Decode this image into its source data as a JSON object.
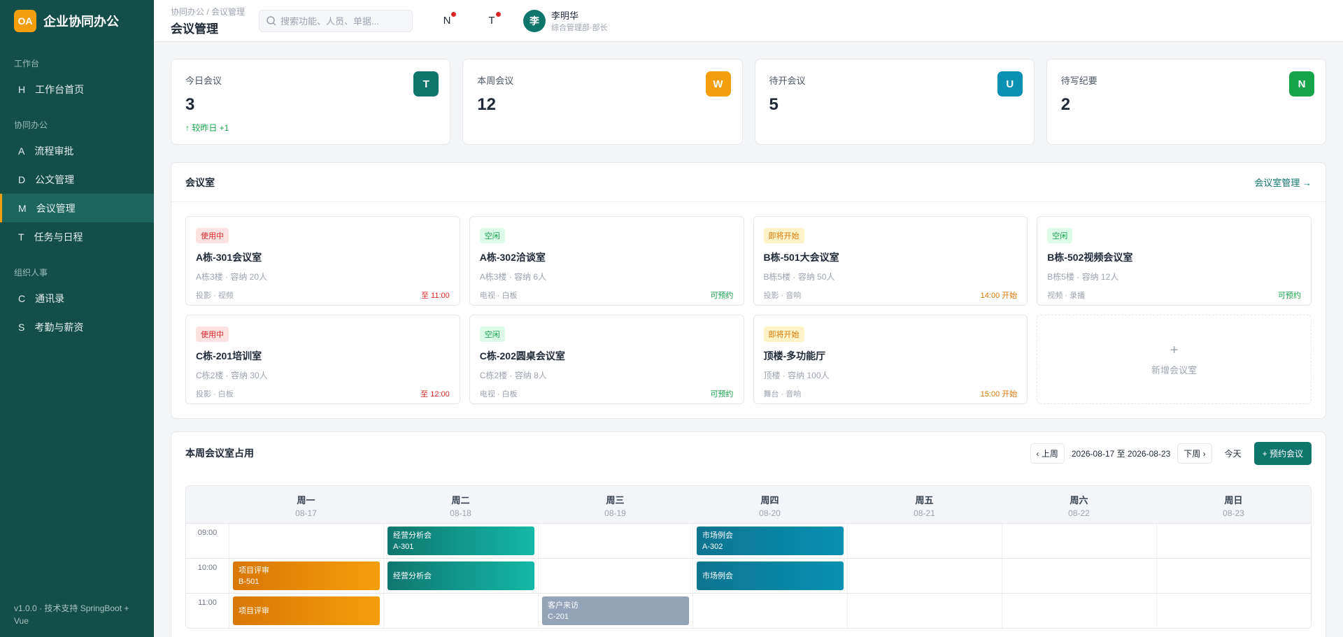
{
  "brand": {
    "logo": "OA",
    "name": "企业协同办公"
  },
  "nav": [
    {
      "title": "工作台",
      "items": [
        {
          "icon": "H",
          "label": "工作台首页"
        }
      ]
    },
    {
      "title": "协同办公",
      "items": [
        {
          "icon": "A",
          "label": "流程审批"
        },
        {
          "icon": "D",
          "label": "公文管理"
        },
        {
          "icon": "M",
          "label": "会议管理",
          "active": true
        },
        {
          "icon": "T",
          "label": "任务与日程"
        }
      ]
    },
    {
      "title": "组织人事",
      "items": [
        {
          "icon": "C",
          "label": "通讯录"
        },
        {
          "icon": "S",
          "label": "考勤与薪资"
        }
      ]
    }
  ],
  "footer": "v1.0.0 · 技术支持 SpringBoot + Vue",
  "header": {
    "breadcrumb": "协同办公 / 会议管理",
    "title": "会议管理",
    "search": "搜索功能、人员、单据...",
    "icons": [
      "N",
      "T"
    ],
    "user": {
      "avatar": "李",
      "name": "李明华",
      "role": "综合管理部·部长"
    }
  },
  "stats": [
    {
      "label": "今日会议",
      "value": 3,
      "icon": "T",
      "color": "#0f766e",
      "note": "↑ 较昨日 +1"
    },
    {
      "label": "本周会议",
      "value": 12,
      "icon": "W",
      "color": "#f59e0b"
    },
    {
      "label": "待开会议",
      "value": 5,
      "icon": "U",
      "color": "#0891b2"
    },
    {
      "label": "待写纪要",
      "value": 2,
      "icon": "N",
      "color": "#16a34a"
    }
  ],
  "rooms": {
    "title": "会议室",
    "link": "会议室管理 →",
    "add_icon": "+",
    "add_label": "新增会议室",
    "items": [
      {
        "status": "使用中",
        "kind": "busy",
        "name": "A栋-301会议室",
        "info": "A栋3楼 · 容纳 20人",
        "equip": "投影 · 视频",
        "time": "至 11:00"
      },
      {
        "status": "空闲",
        "kind": "free",
        "name": "A栋-302洽谈室",
        "info": "A栋3楼 · 容纳 6人",
        "equip": "电视 · 白板",
        "time": "可预约"
      },
      {
        "status": "即将开始",
        "kind": "soon",
        "name": "B栋-501大会议室",
        "info": "B栋5楼 · 容纳 50人",
        "equip": "投影 · 音响",
        "time": "14:00 开始"
      },
      {
        "status": "空闲",
        "kind": "free",
        "name": "B栋-502视频会议室",
        "info": "B栋5楼 · 容纳 12人",
        "equip": "视频 · 录播",
        "time": "可预约"
      },
      {
        "status": "使用中",
        "kind": "busy",
        "name": "C栋-201培训室",
        "info": "C栋2楼 · 容纳 30人",
        "equip": "投影 · 白板",
        "time": "至 12:00"
      },
      {
        "status": "空闲",
        "kind": "free",
        "name": "C栋-202圆桌会议室",
        "info": "C栋2楼 · 容纳 8人",
        "equip": "电视 · 白板",
        "time": "可预约"
      },
      {
        "status": "即将开始",
        "kind": "soon",
        "name": "顶楼-多功能厅",
        "info": "顶楼 · 容纳 100人",
        "equip": "舞台 · 音响",
        "time": "15:00 开始"
      }
    ]
  },
  "schedule": {
    "title": "本周会议室占用",
    "prev": "‹ 上周",
    "range": "2026-08-17 至 2026-08-23",
    "next": "下周 ›",
    "today": "今天",
    "book": "+ 预约会议",
    "days": [
      {
        "name": "周一",
        "date": "08-17"
      },
      {
        "name": "周二",
        "date": "08-18"
      },
      {
        "name": "周三",
        "date": "08-19"
      },
      {
        "name": "周四",
        "date": "08-20"
      },
      {
        "name": "周五",
        "date": "08-21"
      },
      {
        "name": "周六",
        "date": "08-22"
      },
      {
        "name": "周日",
        "date": "08-23"
      }
    ],
    "rows": [
      {
        "time": "09:00",
        "events": [
          {
            "day": "周二",
            "title": "经营分析会",
            "room": "A-301",
            "color": "teal"
          },
          {
            "day": "周四",
            "title": "市场例会",
            "room": "A-302",
            "color": "blue"
          }
        ]
      },
      {
        "time": "10:00",
        "events": [
          {
            "day": "周一",
            "title": "项目评审",
            "room": "B-501",
            "color": "orange"
          },
          {
            "day": "周二",
            "title": "经营分析会",
            "color": "teal"
          },
          {
            "day": "周四",
            "title": "市场例会",
            "color": "blue"
          }
        ]
      },
      {
        "time": "11:00",
        "events": [
          {
            "day": "周一",
            "title": "项目评审",
            "color": "orange"
          },
          {
            "day": "周三",
            "title": "客户来访",
            "room": "C-201",
            "color": "gray"
          }
        ]
      }
    ]
  }
}
